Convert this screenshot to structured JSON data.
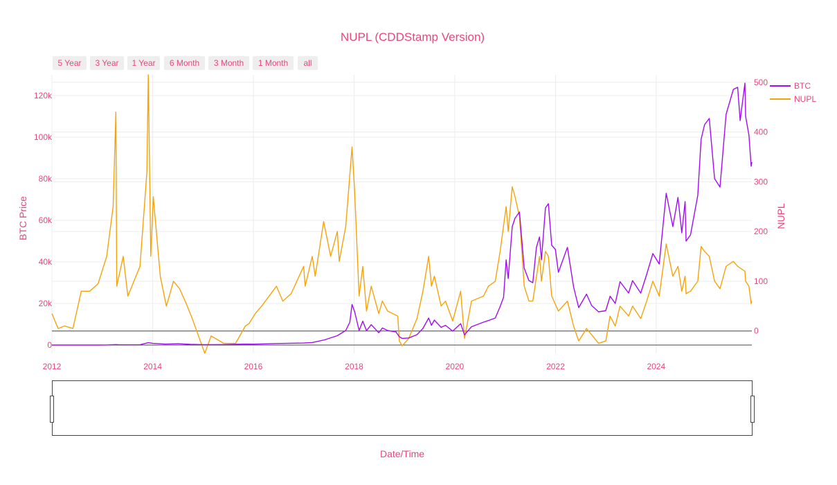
{
  "theme": {
    "text_color": "#e8467c",
    "btc_color": "#a20cf0",
    "nupl_color": "#f5a30a",
    "grid_color": "#ececec",
    "button_bg": "#eeeeee"
  },
  "range_selector": {
    "buttons": [
      "5 Year",
      "3 Year",
      "1 Year",
      "6 Month",
      "3 Month",
      "1 Month",
      "all"
    ]
  },
  "range_slider": {
    "visible": true
  },
  "chart_data": {
    "type": "line",
    "title": "NUPL (CDDStamp Version)",
    "xlabel": "Date/Time",
    "ylabel": "BTC Price",
    "y2label": "NUPL",
    "xlim": [
      "2012-01-01",
      "2025-11-25"
    ],
    "ylim": [
      -4000,
      130000
    ],
    "y2lim": [
      -45,
      515
    ],
    "x_ticks": [
      "2012",
      "2014",
      "2016",
      "2018",
      "2020",
      "2022",
      "2024"
    ],
    "y_ticks": [
      "0",
      "20k",
      "40k",
      "60k",
      "80k",
      "100k",
      "120k"
    ],
    "y2_ticks": [
      "0",
      "100",
      "200",
      "300",
      "400",
      "500"
    ],
    "grid": true,
    "legend_position": "top-right",
    "series": [
      {
        "name": "BTC",
        "axis": "y",
        "points": [
          [
            "2012-01-01",
            5
          ],
          [
            "2012-06-01",
            6
          ],
          [
            "2012-12-01",
            13
          ],
          [
            "2013-02-01",
            25
          ],
          [
            "2013-04-09",
            230
          ],
          [
            "2013-05-01",
            120
          ],
          [
            "2013-08-01",
            100
          ],
          [
            "2013-10-01",
            140
          ],
          [
            "2013-11-30",
            1150
          ],
          [
            "2014-01-01",
            800
          ],
          [
            "2014-04-01",
            450
          ],
          [
            "2014-07-01",
            630
          ],
          [
            "2014-10-01",
            330
          ],
          [
            "2015-01-14",
            180
          ],
          [
            "2015-06-01",
            230
          ],
          [
            "2015-11-04",
            450
          ],
          [
            "2016-01-01",
            430
          ],
          [
            "2016-06-17",
            750
          ],
          [
            "2016-12-31",
            960
          ],
          [
            "2017-03-01",
            1200
          ],
          [
            "2017-06-01",
            2500
          ],
          [
            "2017-09-01",
            4500
          ],
          [
            "2017-11-01",
            7000
          ],
          [
            "2017-12-01",
            11000
          ],
          [
            "2017-12-17",
            19500
          ],
          [
            "2018-01-05",
            16000
          ],
          [
            "2018-02-06",
            7000
          ],
          [
            "2018-03-05",
            11500
          ],
          [
            "2018-04-01",
            6900
          ],
          [
            "2018-05-05",
            9800
          ],
          [
            "2018-06-29",
            5900
          ],
          [
            "2018-07-25",
            8200
          ],
          [
            "2018-09-01",
            7000
          ],
          [
            "2018-11-01",
            6300
          ],
          [
            "2018-11-25",
            4000
          ],
          [
            "2018-12-15",
            3200
          ],
          [
            "2019-02-01",
            3400
          ],
          [
            "2019-04-02",
            5000
          ],
          [
            "2019-05-15",
            8000
          ],
          [
            "2019-06-26",
            13000
          ],
          [
            "2019-07-16",
            9500
          ],
          [
            "2019-08-06",
            12000
          ],
          [
            "2019-09-24",
            8500
          ],
          [
            "2019-10-26",
            9500
          ],
          [
            "2019-12-17",
            6700
          ],
          [
            "2020-02-13",
            10300
          ],
          [
            "2020-03-12",
            4900
          ],
          [
            "2020-05-01",
            8800
          ],
          [
            "2020-07-27",
            11000
          ],
          [
            "2020-09-01",
            11800
          ],
          [
            "2020-10-21",
            13000
          ],
          [
            "2020-11-25",
            18500
          ],
          [
            "2020-12-20",
            23000
          ],
          [
            "2021-01-08",
            41000
          ],
          [
            "2021-01-23",
            32000
          ],
          [
            "2021-02-21",
            57000
          ],
          [
            "2021-03-13",
            61000
          ],
          [
            "2021-04-14",
            64000
          ],
          [
            "2021-05-19",
            37000
          ],
          [
            "2021-06-22",
            31000
          ],
          [
            "2021-07-20",
            30000
          ],
          [
            "2021-08-15",
            47000
          ],
          [
            "2021-09-07",
            52000
          ],
          [
            "2021-09-21",
            41000
          ],
          [
            "2021-10-20",
            66000
          ],
          [
            "2021-11-10",
            68000
          ],
          [
            "2021-12-04",
            48000
          ],
          [
            "2021-12-31",
            46000
          ],
          [
            "2022-01-22",
            35000
          ],
          [
            "2022-03-28",
            47000
          ],
          [
            "2022-05-12",
            28000
          ],
          [
            "2022-06-18",
            18000
          ],
          [
            "2022-08-14",
            24500
          ],
          [
            "2022-09-20",
            19000
          ],
          [
            "2022-11-09",
            16000
          ],
          [
            "2022-12-31",
            16500
          ],
          [
            "2023-02-01",
            23500
          ],
          [
            "2023-03-10",
            20000
          ],
          [
            "2023-04-14",
            30500
          ],
          [
            "2023-06-15",
            25000
          ],
          [
            "2023-07-14",
            31000
          ],
          [
            "2023-09-11",
            25000
          ],
          [
            "2023-10-24",
            34000
          ],
          [
            "2023-12-08",
            44000
          ],
          [
            "2024-01-23",
            39000
          ],
          [
            "2024-03-14",
            73000
          ],
          [
            "2024-05-01",
            57000
          ],
          [
            "2024-06-07",
            71000
          ],
          [
            "2024-07-05",
            54000
          ],
          [
            "2024-07-29",
            69000
          ],
          [
            "2024-08-05",
            50000
          ],
          [
            "2024-09-06",
            53000
          ],
          [
            "2024-10-29",
            72000
          ],
          [
            "2024-11-22",
            99000
          ],
          [
            "2024-12-17",
            106000
          ],
          [
            "2025-01-20",
            109000
          ],
          [
            "2025-02-28",
            80000
          ],
          [
            "2025-04-08",
            76000
          ],
          [
            "2025-05-22",
            111000
          ],
          [
            "2025-07-14",
            123000
          ],
          [
            "2025-08-14",
            124000
          ],
          [
            "2025-09-01",
            108000
          ],
          [
            "2025-10-06",
            126000
          ],
          [
            "2025-10-11",
            110000
          ],
          [
            "2025-11-04",
            101000
          ],
          [
            "2025-11-20",
            86000
          ],
          [
            "2025-11-25",
            88000
          ]
        ]
      },
      {
        "name": "NUPL",
        "axis": "y2",
        "points": [
          [
            "2012-01-01",
            35
          ],
          [
            "2012-02-15",
            5
          ],
          [
            "2012-04-01",
            10
          ],
          [
            "2012-06-01",
            5
          ],
          [
            "2012-08-01",
            80
          ],
          [
            "2012-10-01",
            80
          ],
          [
            "2012-12-01",
            95
          ],
          [
            "2013-02-01",
            150
          ],
          [
            "2013-03-20",
            250
          ],
          [
            "2013-04-09",
            440
          ],
          [
            "2013-04-15",
            90
          ],
          [
            "2013-06-01",
            150
          ],
          [
            "2013-07-05",
            70
          ],
          [
            "2013-10-01",
            130
          ],
          [
            "2013-11-20",
            320
          ],
          [
            "2013-11-30",
            515
          ],
          [
            "2013-12-18",
            150
          ],
          [
            "2014-01-05",
            270
          ],
          [
            "2014-02-25",
            110
          ],
          [
            "2014-04-10",
            50
          ],
          [
            "2014-06-01",
            100
          ],
          [
            "2014-07-15",
            85
          ],
          [
            "2014-09-01",
            55
          ],
          [
            "2014-10-15",
            25
          ],
          [
            "2015-01-14",
            -45
          ],
          [
            "2015-03-01",
            -10
          ],
          [
            "2015-06-01",
            -25
          ],
          [
            "2015-08-25",
            -25
          ],
          [
            "2015-11-04",
            10
          ],
          [
            "2015-12-01",
            15
          ],
          [
            "2016-01-15",
            35
          ],
          [
            "2016-03-01",
            50
          ],
          [
            "2016-06-17",
            90
          ],
          [
            "2016-08-02",
            60
          ],
          [
            "2016-10-01",
            75
          ],
          [
            "2016-12-31",
            130
          ],
          [
            "2017-01-11",
            90
          ],
          [
            "2017-03-03",
            150
          ],
          [
            "2017-03-25",
            110
          ],
          [
            "2017-05-25",
            220
          ],
          [
            "2017-07-15",
            150
          ],
          [
            "2017-09-01",
            200
          ],
          [
            "2017-09-15",
            140
          ],
          [
            "2017-11-01",
            210
          ],
          [
            "2017-12-17",
            370
          ],
          [
            "2018-01-05",
            280
          ],
          [
            "2018-02-06",
            70
          ],
          [
            "2018-03-05",
            130
          ],
          [
            "2018-04-01",
            40
          ],
          [
            "2018-05-05",
            90
          ],
          [
            "2018-06-29",
            35
          ],
          [
            "2018-07-25",
            60
          ],
          [
            "2018-09-01",
            40
          ],
          [
            "2018-11-14",
            30
          ],
          [
            "2018-11-25",
            -20
          ],
          [
            "2018-12-15",
            -30
          ],
          [
            "2019-02-01",
            -15
          ],
          [
            "2019-04-02",
            25
          ],
          [
            "2019-05-15",
            80
          ],
          [
            "2019-06-26",
            150
          ],
          [
            "2019-07-16",
            90
          ],
          [
            "2019-08-06",
            110
          ],
          [
            "2019-09-24",
            50
          ],
          [
            "2019-10-26",
            60
          ],
          [
            "2019-12-17",
            20
          ],
          [
            "2020-02-13",
            80
          ],
          [
            "2020-03-12",
            -15
          ],
          [
            "2020-05-01",
            60
          ],
          [
            "2020-07-27",
            70
          ],
          [
            "2020-09-01",
            90
          ],
          [
            "2020-10-21",
            100
          ],
          [
            "2020-11-25",
            160
          ],
          [
            "2021-01-08",
            250
          ],
          [
            "2021-01-23",
            200
          ],
          [
            "2021-02-21",
            290
          ],
          [
            "2021-03-13",
            270
          ],
          [
            "2021-04-14",
            230
          ],
          [
            "2021-05-19",
            90
          ],
          [
            "2021-06-22",
            60
          ],
          [
            "2021-07-20",
            60
          ],
          [
            "2021-09-07",
            150
          ],
          [
            "2021-09-21",
            100
          ],
          [
            "2021-10-20",
            160
          ],
          [
            "2021-11-10",
            150
          ],
          [
            "2021-12-04",
            70
          ],
          [
            "2022-01-22",
            40
          ],
          [
            "2022-03-28",
            60
          ],
          [
            "2022-05-12",
            10
          ],
          [
            "2022-06-18",
            -20
          ],
          [
            "2022-08-14",
            5
          ],
          [
            "2022-11-09",
            -25
          ],
          [
            "2023-01-01",
            -20
          ],
          [
            "2023-01-31",
            30
          ],
          [
            "2023-03-10",
            10
          ],
          [
            "2023-04-14",
            50
          ],
          [
            "2023-06-15",
            30
          ],
          [
            "2023-07-14",
            50
          ],
          [
            "2023-09-11",
            25
          ],
          [
            "2023-10-24",
            60
          ],
          [
            "2023-12-08",
            100
          ],
          [
            "2024-01-23",
            70
          ],
          [
            "2024-03-14",
            175
          ],
          [
            "2024-05-01",
            110
          ],
          [
            "2024-06-07",
            130
          ],
          [
            "2024-07-05",
            80
          ],
          [
            "2024-07-29",
            110
          ],
          [
            "2024-08-05",
            75
          ],
          [
            "2024-09-06",
            80
          ],
          [
            "2024-10-29",
            100
          ],
          [
            "2024-11-22",
            170
          ],
          [
            "2024-12-17",
            160
          ],
          [
            "2025-01-20",
            150
          ],
          [
            "2025-02-28",
            100
          ],
          [
            "2025-04-08",
            85
          ],
          [
            "2025-05-22",
            130
          ],
          [
            "2025-07-14",
            140
          ],
          [
            "2025-08-14",
            130
          ],
          [
            "2025-10-06",
            120
          ],
          [
            "2025-10-11",
            100
          ],
          [
            "2025-11-04",
            90
          ],
          [
            "2025-11-20",
            55
          ],
          [
            "2025-11-25",
            60
          ]
        ]
      }
    ]
  }
}
